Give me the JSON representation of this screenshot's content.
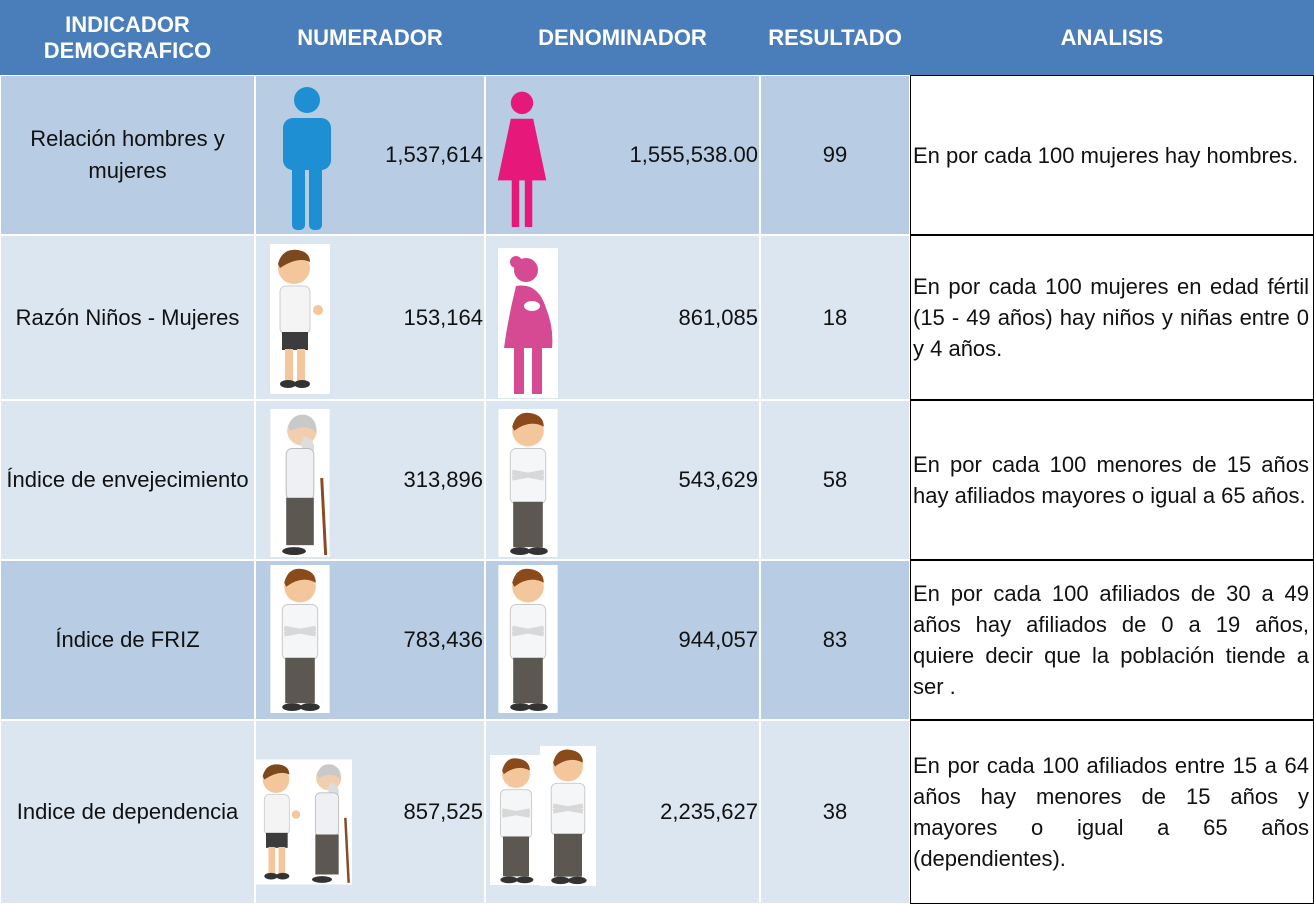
{
  "table": {
    "headers": [
      "INDICADOR DEMOGRAFICO",
      "NUMERADOR",
      "DENOMINADOR",
      "RESULTADO",
      "ANALISIS"
    ],
    "rows": [
      [
        "Relación hombres y mujeres",
        "1,537,614",
        "1,555,538.00",
        "99",
        "En por cada 100 mujeres hay hombres."
      ],
      [
        "Razón Niños - Mujeres",
        "153,164",
        "861,085",
        "18",
        "En por cada 100 mujeres en edad fértil (15 - 49 años) hay niños y niñas entre 0 y 4 años."
      ],
      [
        "Índice de envejecimiento",
        "313,896",
        "543,629",
        "58",
        "En por cada 100 menores de 15 años hay afiliados mayores o igual a 65 años."
      ],
      [
        "Índice de FRIZ",
        "783,436",
        "944,057",
        "83",
        "En por cada 100 afiliados de 30 a 49 años hay afiliados de 0 a 19 años, quiere decir que la población tiende a ser ."
      ],
      [
        "Indice de dependencia",
        "857,525",
        "2,235,627",
        "38",
        "En por cada 100 afiliados entre 15 a 64 años hay menores de 15 años y mayores o igual a 65 años (dependientes)."
      ]
    ]
  }
}
